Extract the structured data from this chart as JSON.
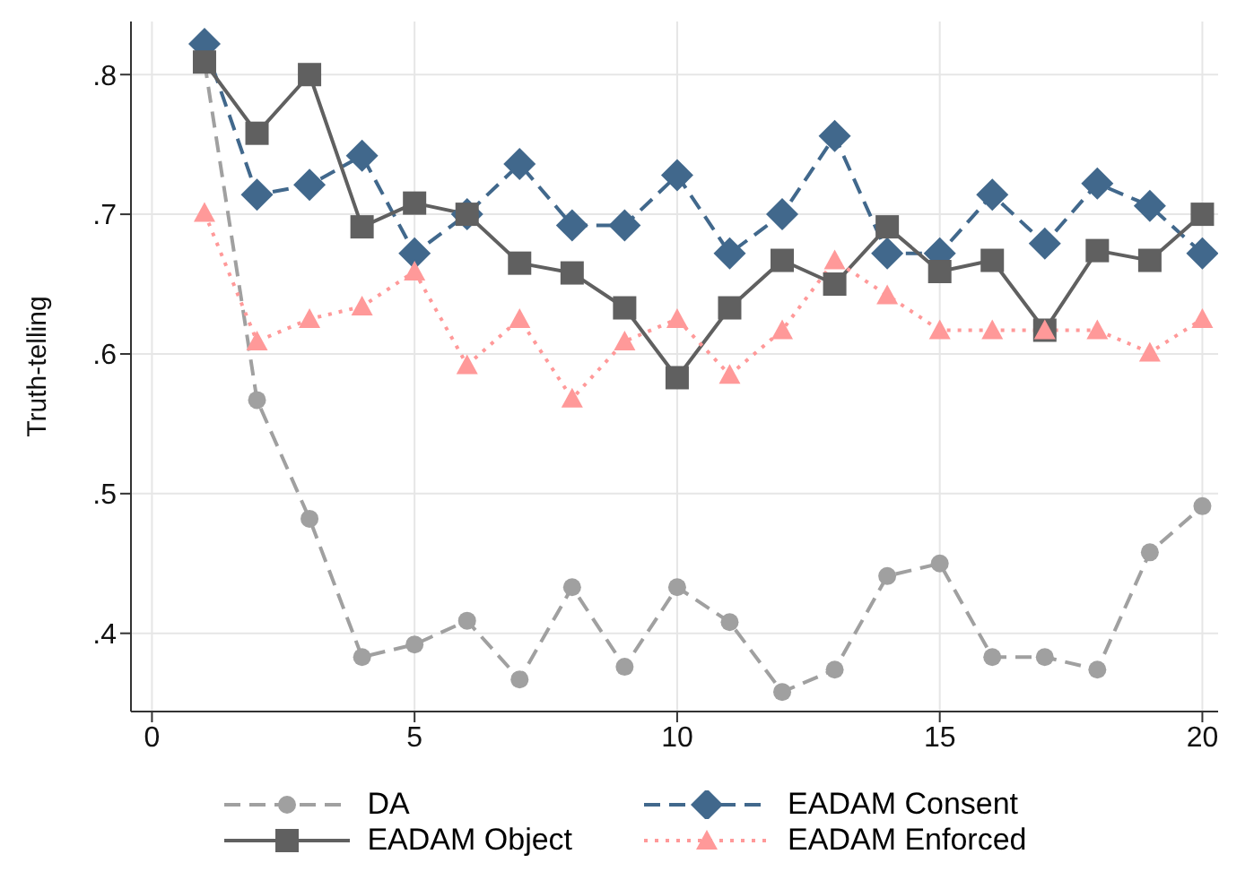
{
  "chart_data": {
    "type": "line",
    "ylabel": "Truth-telling",
    "x": [
      1,
      2,
      3,
      4,
      5,
      6,
      7,
      8,
      9,
      10,
      11,
      12,
      13,
      14,
      15,
      16,
      17,
      18,
      19,
      20
    ],
    "xlim": [
      -0.4,
      20.3
    ],
    "xticks": [
      0,
      5,
      10,
      15,
      20
    ],
    "ylim": [
      0.344,
      0.838
    ],
    "yticks": [
      {
        "value": 0.4,
        "label": ".4"
      },
      {
        "value": 0.5,
        "label": ".5"
      },
      {
        "value": 0.6,
        "label": ".6"
      },
      {
        "value": 0.7,
        "label": ".7"
      },
      {
        "value": 0.8,
        "label": ".8"
      }
    ],
    "grid": true,
    "legend": "bottom",
    "series": [
      {
        "name": "DA",
        "color": "#a0a0a0",
        "marker": "circle",
        "line_style": "dashed",
        "values": [
          0.809,
          0.567,
          0.482,
          0.383,
          0.392,
          0.409,
          0.367,
          0.433,
          0.376,
          0.433,
          0.408,
          0.358,
          0.374,
          0.441,
          0.45,
          0.383,
          0.383,
          0.374,
          0.458,
          0.491
        ]
      },
      {
        "name": "EADAM Consent",
        "color": "#41688c",
        "marker": "diamond",
        "line_style": "dashed",
        "values": [
          0.822,
          0.714,
          0.721,
          0.742,
          0.672,
          0.7,
          0.736,
          0.692,
          0.692,
          0.728,
          0.672,
          0.7,
          0.756,
          0.672,
          0.672,
          0.714,
          0.679,
          0.722,
          0.706,
          0.672
        ]
      },
      {
        "name": "EADAM Object",
        "color": "#606060",
        "marker": "square",
        "line_style": "solid",
        "values": [
          0.809,
          0.758,
          0.8,
          0.691,
          0.708,
          0.7,
          0.665,
          0.658,
          0.633,
          0.583,
          0.633,
          0.667,
          0.65,
          0.691,
          0.659,
          0.667,
          0.617,
          0.674,
          0.667,
          0.7
        ]
      },
      {
        "name": "EADAM Enforced",
        "color": "#ff9999",
        "marker": "triangle",
        "line_style": "dotted",
        "values": [
          0.701,
          0.609,
          0.625,
          0.634,
          0.659,
          0.592,
          0.625,
          0.568,
          0.609,
          0.625,
          0.585,
          0.617,
          0.667,
          0.642,
          0.617,
          0.617,
          0.617,
          0.617,
          0.601,
          0.625
        ]
      }
    ]
  }
}
